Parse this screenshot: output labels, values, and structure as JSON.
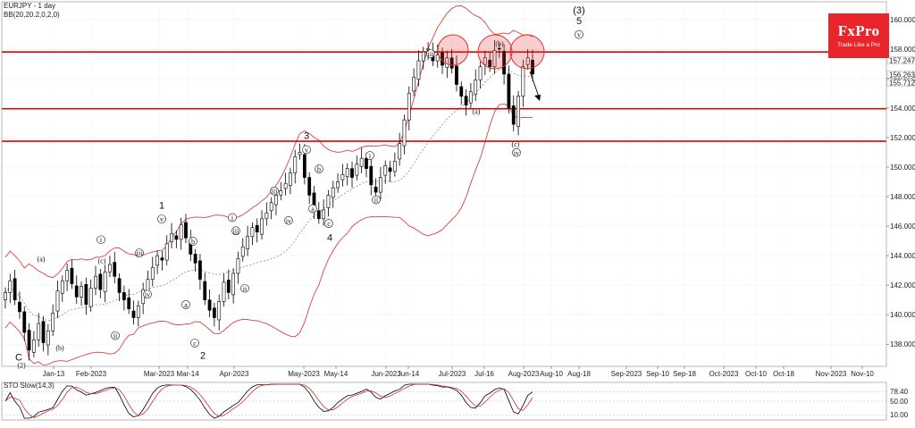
{
  "chart_title": "EURJPY - 1 day",
  "indicator_label": "BB(20,20.2,0,2,0)",
  "stochastic_label": "STO Slow(14,3)",
  "logo": {
    "brand": "FxPro",
    "tagline": "Trade Like a Pro",
    "color": "#e8252a"
  },
  "colors": {
    "levels": "#e00000",
    "bands": "#e04040",
    "candle_up": "#ffffff",
    "candle_down": "#000000"
  },
  "chart_data": {
    "type": "candlestick",
    "price_ticks": [
      "160.000",
      "158.000",
      "156.000",
      "154.000",
      "152.000",
      "150.000",
      "148.000",
      "146.000",
      "144.000",
      "142.000",
      "140.000",
      "138.000"
    ],
    "price_tags": [
      "157.247",
      "156.263",
      "155.712"
    ],
    "date_ticks": [
      "Jan-13",
      "Feb-2023",
      "Mar-2023",
      "Mar-14",
      "Apr-2023",
      "May-2023",
      "May-14",
      "Jun-2023",
      "Jun-14",
      "Jul-2023",
      "Jul-16",
      "Aug-2023",
      "Aug-10",
      "Aug-18",
      "Sep-2023",
      "Sep-10",
      "Sep-18",
      "Oct-2023",
      "Oct-10",
      "Oct-18",
      "Nov-2023",
      "Nov-10"
    ],
    "sto_ticks": [
      "78.40",
      "50.00",
      "10.00"
    ],
    "ylim": [
      136.5,
      161.2
    ],
    "resistance_levels": [
      157.8,
      153.95,
      151.75
    ],
    "closes": [
      141.5,
      142.3,
      141.0,
      140.2,
      138.8,
      137.6,
      138.3,
      139.4,
      138.1,
      138.9,
      140.1,
      141.6,
      142.3,
      143.0,
      142.1,
      141.2,
      141.9,
      140.7,
      141.8,
      142.6,
      141.7,
      142.9,
      143.4,
      142.6,
      141.5,
      141.0,
      140.4,
      139.8,
      140.6,
      141.7,
      142.4,
      143.2,
      144.0,
      143.7,
      144.8,
      145.5,
      145.1,
      146.1,
      145.2,
      144.1,
      143.5,
      142.4,
      141.0,
      140.3,
      139.8,
      140.9,
      142.2,
      141.5,
      142.8,
      143.8,
      144.6,
      145.3,
      145.9,
      145.6,
      146.5,
      146.9,
      147.6,
      148.1,
      148.4,
      148.9,
      149.6,
      150.7,
      151.0,
      149.3,
      148.1,
      147.2,
      146.5,
      147.1,
      148.1,
      148.6,
      149.0,
      149.5,
      149.9,
      149.3,
      150.2,
      150.6,
      149.9,
      148.8,
      148.3,
      149.3,
      150.1,
      149.7,
      150.4,
      151.6,
      153.2,
      155.0,
      156.1,
      157.2,
      157.8,
      158.0,
      157.2,
      157.6,
      156.9,
      157.4,
      156.7,
      155.6,
      154.8,
      154.2,
      155.1,
      155.9,
      156.8,
      157.4,
      156.8,
      157.9,
      158.0,
      156.3,
      154.0,
      152.9,
      154.8,
      156.8,
      157.4,
      156.3
    ],
    "waves": [
      {
        "label": "C",
        "price": 136.9
      },
      {
        "label": "(2)",
        "price": 136.4
      },
      {
        "label": "(a)",
        "price": 143.6
      },
      {
        "label": "(b)",
        "price": 137.6
      },
      {
        "label": "i",
        "price": 144.9
      },
      {
        "label": "(c)",
        "price": 143.5
      },
      {
        "label": "iii",
        "price": 144.0
      },
      {
        "label": "ii",
        "price": 138.4
      },
      {
        "label": "iv",
        "price": 141.2
      },
      {
        "label": "1",
        "price": 147.2
      },
      {
        "label": "v",
        "price": 146.3
      },
      {
        "label": "a",
        "price": 140.5
      },
      {
        "label": "b",
        "price": 144.8
      },
      {
        "label": "c",
        "price": 137.9
      },
      {
        "label": "2",
        "price": 137.0
      },
      {
        "label": "i",
        "price": 146.4
      },
      {
        "label": "iii",
        "price": 145.5
      },
      {
        "label": "ii",
        "price": 141.6
      },
      {
        "label": "iii",
        "price": 148.2
      },
      {
        "label": "iv",
        "price": 146.2
      },
      {
        "label": "3",
        "price": 151.9
      },
      {
        "label": "v",
        "price": 151.0
      },
      {
        "label": "b",
        "price": 149.7
      },
      {
        "label": "a",
        "price": 147.0
      },
      {
        "label": "c",
        "price": 146.0
      },
      {
        "label": "4",
        "price": 145.0
      },
      {
        "label": "i",
        "price": 150.6
      },
      {
        "label": "ii",
        "price": 147.6
      },
      {
        "label": "iii",
        "price": 157.5
      },
      {
        "label": "(b)",
        "price": 158.2
      },
      {
        "label": "(a)",
        "price": 153.6
      },
      {
        "label": "(c)",
        "price": 151.4
      },
      {
        "label": "iv",
        "price": 150.8
      },
      {
        "label": "(3)",
        "price": 160.4
      },
      {
        "label": "5",
        "price": 159.7
      },
      {
        "label": "v",
        "price": 158.8
      }
    ]
  }
}
